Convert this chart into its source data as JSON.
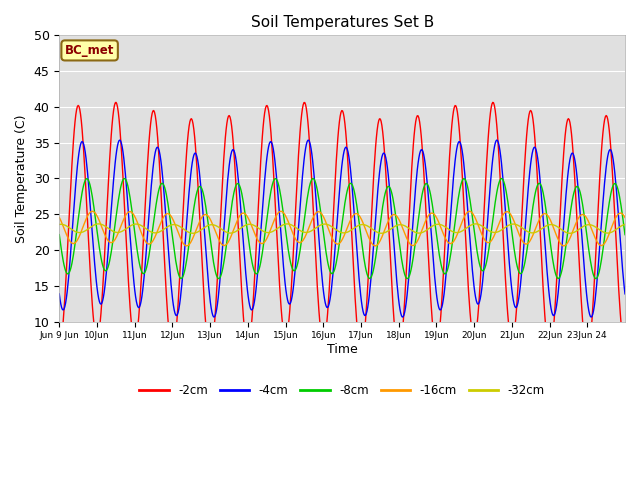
{
  "title": "Soil Temperatures Set B",
  "xlabel": "Time",
  "ylabel": "Soil Temperature (C)",
  "ylim": [
    10,
    50
  ],
  "series_colors": [
    "#ff0000",
    "#0000ff",
    "#00cc00",
    "#ff9900",
    "#cccc00"
  ],
  "series_labels": [
    "-2cm",
    "-4cm",
    "-8cm",
    "-16cm",
    "-32cm"
  ],
  "bc_met_label": "BC_met",
  "plot_bg_color": "#e0e0e0",
  "n_days": 15,
  "base_temp": 23.0,
  "amplitude_2cm": 16.5,
  "amplitude_4cm": 11.5,
  "amplitude_8cm": 6.5,
  "amplitude_16cm": 2.2,
  "amplitude_32cm": 0.6,
  "phase_shift_4cm_hours": 2.5,
  "phase_shift_8cm_hours": 5.5,
  "phase_shift_16cm_hours": 9.0,
  "phase_shift_32cm_hours": 13.0,
  "period_hours": 24,
  "samples_per_day": 48,
  "xtick_labels": [
    "Jun 9 Jun",
    "10Jun",
    "11Jun",
    "12Jun",
    "13Jun",
    "14Jun",
    "15Jun",
    "16Jun",
    "17Jun",
    "18Jun",
    "19Jun",
    "20Jun",
    "21Jun",
    "22Jun",
    "23Jun 24"
  ]
}
